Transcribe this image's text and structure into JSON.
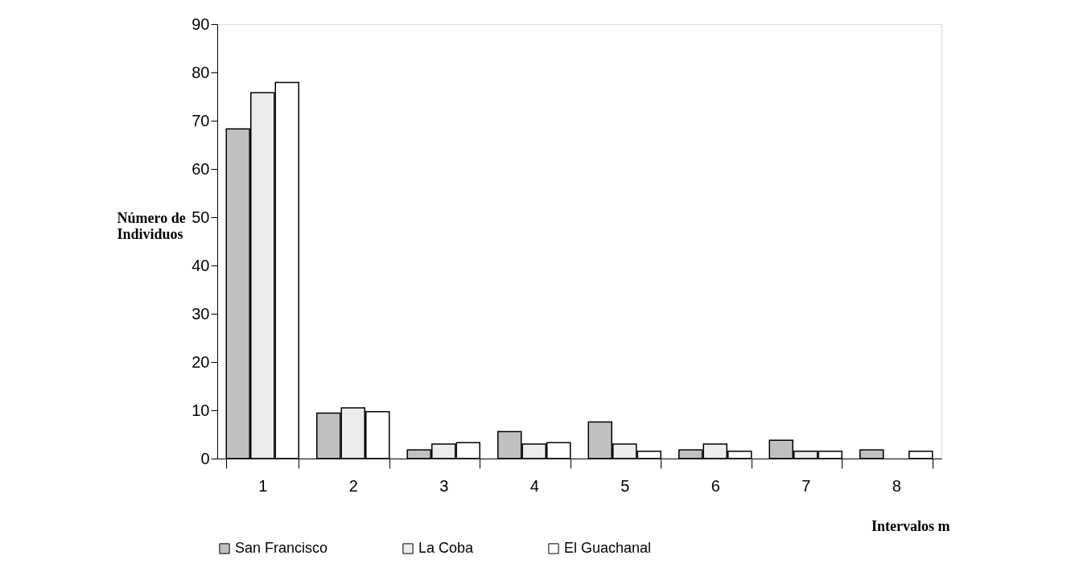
{
  "chart_data": {
    "type": "bar",
    "xlabel": "Intervalos m",
    "ylabel": "Número de\nIndividuos",
    "categories": [
      "1",
      "2",
      "3",
      "4",
      "5",
      "6",
      "7",
      "8"
    ],
    "series": [
      {
        "name": "San Francisco",
        "color": "#c0c0c0",
        "values": [
          68.3,
          9.4,
          1.8,
          5.6,
          7.6,
          1.8,
          3.8,
          1.8
        ]
      },
      {
        "name": "La Coba",
        "color": "#ececec",
        "values": [
          75.8,
          10.5,
          3.0,
          3.0,
          3.0,
          3.0,
          1.5,
          null
        ]
      },
      {
        "name": "El Guachanal",
        "color": "#ffffff",
        "values": [
          77.9,
          9.7,
          3.3,
          3.3,
          1.5,
          1.5,
          1.5,
          1.5
        ]
      }
    ],
    "ylim": [
      0,
      90
    ],
    "yticks": [
      0,
      10,
      20,
      30,
      40,
      50,
      60,
      70,
      80,
      90
    ],
    "grid": false,
    "legend": "bottom"
  }
}
